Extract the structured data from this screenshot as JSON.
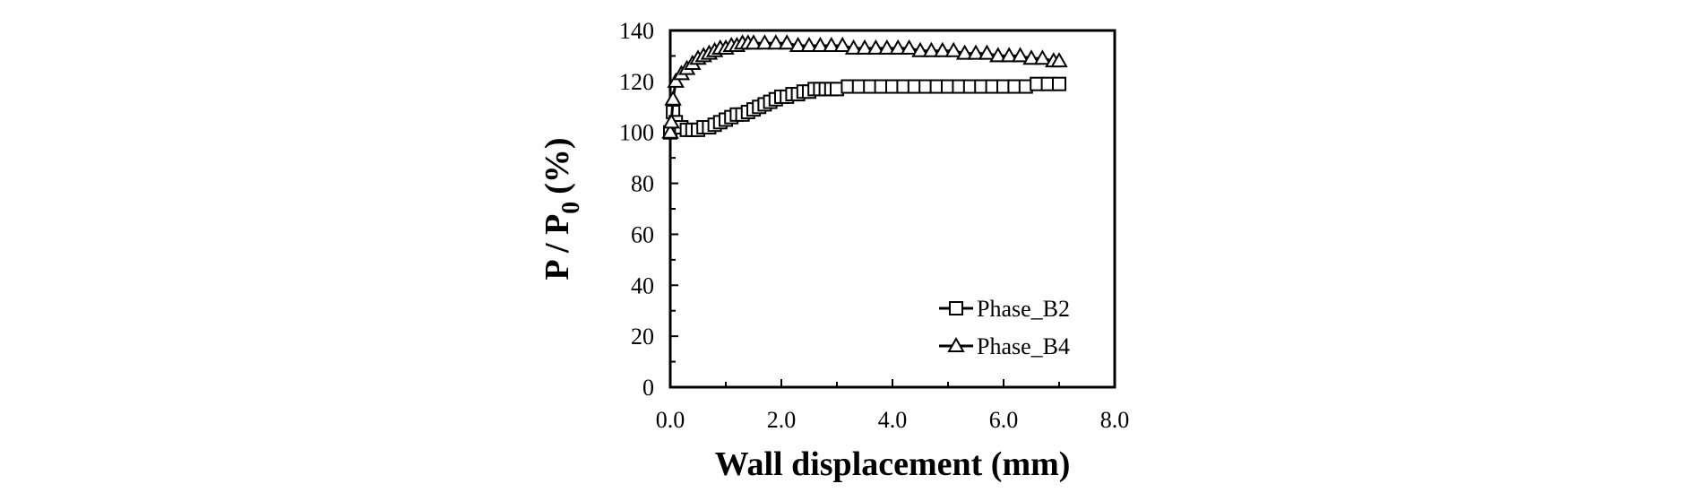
{
  "chart_data": {
    "type": "scatter",
    "xlabel": "Wall displacement (mm)",
    "ylabel_main": "P / P",
    "ylabel_sub": "0",
    "ylabel_unit": "(%)",
    "xlim": [
      0,
      8
    ],
    "ylim": [
      0,
      140
    ],
    "x_ticks": [
      "0.0",
      "2.0",
      "4.0",
      "6.0",
      "8.0"
    ],
    "y_ticks": [
      "0",
      "20",
      "40",
      "60",
      "80",
      "100",
      "120",
      "140"
    ],
    "grid": false,
    "legend_position": "bottom-right",
    "series": [
      {
        "name": "Phase_B2",
        "marker": "square",
        "points": [
          [
            0.0,
            100
          ],
          [
            0.05,
            108
          ],
          [
            0.1,
            104
          ],
          [
            0.2,
            102
          ],
          [
            0.3,
            101
          ],
          [
            0.4,
            101
          ],
          [
            0.5,
            101
          ],
          [
            0.6,
            102
          ],
          [
            0.7,
            102
          ],
          [
            0.8,
            103
          ],
          [
            0.9,
            104
          ],
          [
            1.0,
            105
          ],
          [
            1.1,
            106
          ],
          [
            1.2,
            107
          ],
          [
            1.3,
            107
          ],
          [
            1.4,
            108
          ],
          [
            1.5,
            109
          ],
          [
            1.6,
            110
          ],
          [
            1.7,
            111
          ],
          [
            1.8,
            112
          ],
          [
            1.9,
            113
          ],
          [
            2.0,
            114
          ],
          [
            2.1,
            114
          ],
          [
            2.2,
            115
          ],
          [
            2.3,
            115
          ],
          [
            2.4,
            116
          ],
          [
            2.5,
            116
          ],
          [
            2.6,
            117
          ],
          [
            2.7,
            117
          ],
          [
            2.8,
            117
          ],
          [
            2.9,
            117
          ],
          [
            3.0,
            117
          ],
          [
            3.2,
            118
          ],
          [
            3.4,
            118
          ],
          [
            3.6,
            118
          ],
          [
            3.8,
            118
          ],
          [
            4.0,
            118
          ],
          [
            4.2,
            118
          ],
          [
            4.4,
            118
          ],
          [
            4.6,
            118
          ],
          [
            4.8,
            118
          ],
          [
            5.0,
            118
          ],
          [
            5.2,
            118
          ],
          [
            5.4,
            118
          ],
          [
            5.6,
            118
          ],
          [
            5.8,
            118
          ],
          [
            6.0,
            118
          ],
          [
            6.2,
            118
          ],
          [
            6.4,
            118
          ],
          [
            6.6,
            119
          ],
          [
            6.8,
            119
          ],
          [
            7.0,
            119
          ]
        ]
      },
      {
        "name": "Phase_B4",
        "marker": "triangle",
        "points": [
          [
            0.0,
            100
          ],
          [
            0.02,
            104
          ],
          [
            0.05,
            113
          ],
          [
            0.1,
            120
          ],
          [
            0.2,
            123
          ],
          [
            0.3,
            125
          ],
          [
            0.4,
            127
          ],
          [
            0.5,
            129
          ],
          [
            0.6,
            130
          ],
          [
            0.7,
            131
          ],
          [
            0.8,
            132
          ],
          [
            0.9,
            133
          ],
          [
            1.0,
            133
          ],
          [
            1.1,
            134
          ],
          [
            1.2,
            134
          ],
          [
            1.3,
            135
          ],
          [
            1.4,
            135
          ],
          [
            1.5,
            135
          ],
          [
            1.7,
            135
          ],
          [
            1.9,
            135
          ],
          [
            2.1,
            135
          ],
          [
            2.3,
            134
          ],
          [
            2.5,
            134
          ],
          [
            2.7,
            134
          ],
          [
            2.9,
            134
          ],
          [
            3.1,
            134
          ],
          [
            3.3,
            133
          ],
          [
            3.5,
            133
          ],
          [
            3.7,
            133
          ],
          [
            3.9,
            133
          ],
          [
            4.1,
            133
          ],
          [
            4.3,
            133
          ],
          [
            4.5,
            132
          ],
          [
            4.7,
            132
          ],
          [
            4.9,
            132
          ],
          [
            5.1,
            132
          ],
          [
            5.3,
            131
          ],
          [
            5.5,
            131
          ],
          [
            5.7,
            131
          ],
          [
            5.9,
            130
          ],
          [
            6.1,
            130
          ],
          [
            6.3,
            130
          ],
          [
            6.5,
            129
          ],
          [
            6.7,
            129
          ],
          [
            6.9,
            128
          ],
          [
            7.0,
            128
          ]
        ]
      }
    ]
  }
}
